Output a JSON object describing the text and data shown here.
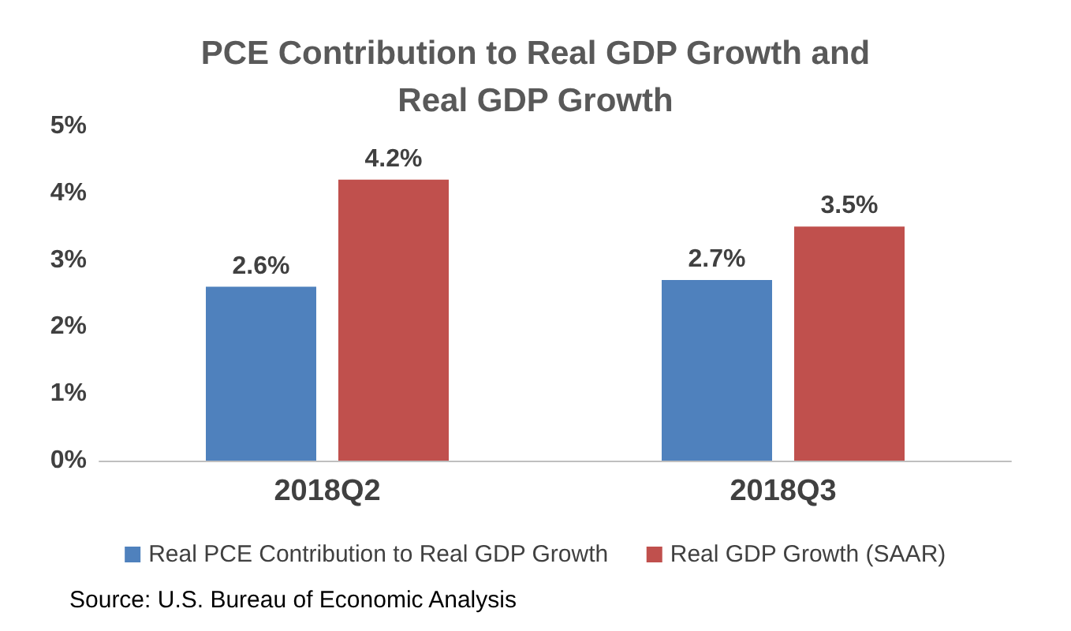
{
  "chart_data": {
    "type": "bar",
    "title": "PCE Contribution to Real GDP Growth and\nReal GDP Growth",
    "categories": [
      "2018Q2",
      "2018Q3"
    ],
    "series": [
      {
        "name": "Real PCE Contribution to Real GDP Growth",
        "color": "#4f81bd",
        "values": [
          2.6,
          2.7
        ],
        "value_labels": [
          "2.6%",
          "2.7%"
        ]
      },
      {
        "name": "Real GDP Growth (SAAR)",
        "color": "#c0504d",
        "values": [
          4.2,
          3.5
        ],
        "value_labels": [
          "4.2%",
          "3.5%"
        ]
      }
    ],
    "ylim": [
      0,
      5
    ],
    "yticks": [
      {
        "value": 0,
        "label": "0%"
      },
      {
        "value": 1,
        "label": "1%"
      },
      {
        "value": 2,
        "label": "2%"
      },
      {
        "value": 3,
        "label": "3%"
      },
      {
        "value": 4,
        "label": "4%"
      },
      {
        "value": 5,
        "label": "5%"
      }
    ],
    "grid": false,
    "legend": "bottom",
    "annotations": [
      "Source: U.S. Bureau of Economic Analysis"
    ]
  }
}
